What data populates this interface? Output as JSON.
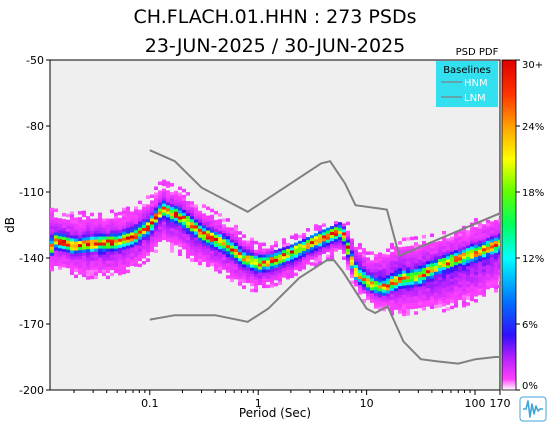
{
  "figure": {
    "title_line1": "CH.FLACH.01.HHN : 273 PSDs",
    "title_line2": "23-JUN-2025 / 30-JUN-2025",
    "logo_icon": "seismic-waveform-logo-icon"
  },
  "colors": {
    "plot_background": "#efefef",
    "baseline_line": "#808080",
    "legend_background": "#33e0f0",
    "legend_text": "#ffffff",
    "logo": "#3fa6d9"
  },
  "colorbar": {
    "title": "PSD PDF",
    "tick_labels": [
      "30+",
      "24%",
      "18%",
      "12%",
      "6%",
      "0%"
    ],
    "tick_values": [
      30,
      24,
      18,
      12,
      6,
      0
    ],
    "range": [
      0,
      30
    ],
    "stops": [
      {
        "value": 0,
        "color": "#ffffff"
      },
      {
        "value": 1,
        "color": "#ff40ff"
      },
      {
        "value": 3,
        "color": "#b020ff"
      },
      {
        "value": 5,
        "color": "#3010ff"
      },
      {
        "value": 8,
        "color": "#0070ff"
      },
      {
        "value": 12,
        "color": "#00ffff"
      },
      {
        "value": 15,
        "color": "#00ff60"
      },
      {
        "value": 18,
        "color": "#60ff00"
      },
      {
        "value": 21,
        "color": "#ffff00"
      },
      {
        "value": 24,
        "color": "#ffa000"
      },
      {
        "value": 27,
        "color": "#ff3000"
      },
      {
        "value": 30,
        "color": "#e00000"
      }
    ]
  },
  "legend": {
    "title": "Baselines",
    "items": [
      {
        "label": "HNM"
      },
      {
        "label": "LNM"
      }
    ]
  },
  "chart_data": {
    "type": "heatmap",
    "xlabel": "Period (Sec)",
    "ylabel": "dB",
    "xscale": "log",
    "xlim": [
      0.012,
      170
    ],
    "ylim": [
      -200,
      -50
    ],
    "xtick_labels": [
      "0.1",
      "1",
      "10",
      "100",
      "170"
    ],
    "xtick_values": [
      0.1,
      1,
      10,
      100,
      170
    ],
    "ytick_labels": [
      "-50",
      "-80",
      "-110",
      "-140",
      "-170",
      "-200"
    ],
    "ytick_values": [
      -50,
      -80,
      -110,
      -140,
      -170,
      -200
    ],
    "grid": false,
    "legend_position": "top-right",
    "mode_curve": {
      "x": [
        0.012,
        0.013,
        0.02,
        0.03,
        0.05,
        0.07,
        0.1,
        0.13,
        0.2,
        0.3,
        0.5,
        0.7,
        1,
        1.3,
        2,
        3,
        4,
        5,
        6,
        7,
        8,
        10,
        12,
        15,
        20,
        30,
        50,
        100,
        170
      ],
      "y": [
        -138,
        -131,
        -134,
        -133,
        -132,
        -130,
        -125,
        -117,
        -121,
        -128,
        -133,
        -139,
        -142,
        -141,
        -137,
        -133,
        -130,
        -128,
        -127,
        -138,
        -146,
        -150,
        -152,
        -153,
        -149,
        -148,
        -142,
        -137,
        -133
      ]
    },
    "pdf_band": {
      "x": [
        0.012,
        0.02,
        0.03,
        0.05,
        0.07,
        0.1,
        0.13,
        0.2,
        0.3,
        0.5,
        0.7,
        1,
        1.3,
        2,
        3,
        4,
        5,
        6,
        7,
        8,
        10,
        12,
        15,
        20,
        30,
        50,
        100,
        170
      ],
      "y_upper": [
        -120,
        -122,
        -121,
        -121,
        -119,
        -114,
        -107,
        -111,
        -118,
        -124,
        -130,
        -136,
        -136,
        -133,
        -129,
        -126,
        -124,
        -122,
        -128,
        -134,
        -140,
        -140,
        -138,
        -134,
        -133,
        -131,
        -125,
        -121
      ],
      "y_lower": [
        -142,
        -145,
        -146,
        -145,
        -143,
        -138,
        -131,
        -135,
        -141,
        -145,
        -150,
        -152,
        -150,
        -146,
        -141,
        -138,
        -136,
        -135,
        -146,
        -152,
        -157,
        -160,
        -162,
        -163,
        -162,
        -161,
        -157,
        -150
      ]
    },
    "series": [
      {
        "name": "HNM",
        "x": [
          0.1,
          0.17,
          0.3,
          0.8,
          3.8,
          4.6,
          6.3,
          7.9,
          15.4,
          20,
          354.8
        ],
        "y": [
          -91,
          -96,
          -108,
          -119,
          -97,
          -96,
          -106,
          -116,
          -118,
          -139,
          -113
        ]
      },
      {
        "name": "LNM",
        "x": [
          0.1,
          0.17,
          0.4,
          0.8,
          1.24,
          2.4,
          4.3,
          5,
          6,
          10,
          12,
          15.6,
          21.9,
          31.6,
          45,
          70,
          101,
          154,
          328
        ],
        "y": [
          -168,
          -166,
          -166,
          -169,
          -163,
          -149,
          -141,
          -141,
          -146,
          -163,
          -165,
          -162,
          -178,
          -186,
          -187,
          -188,
          -186,
          -185,
          -185
        ]
      }
    ]
  }
}
